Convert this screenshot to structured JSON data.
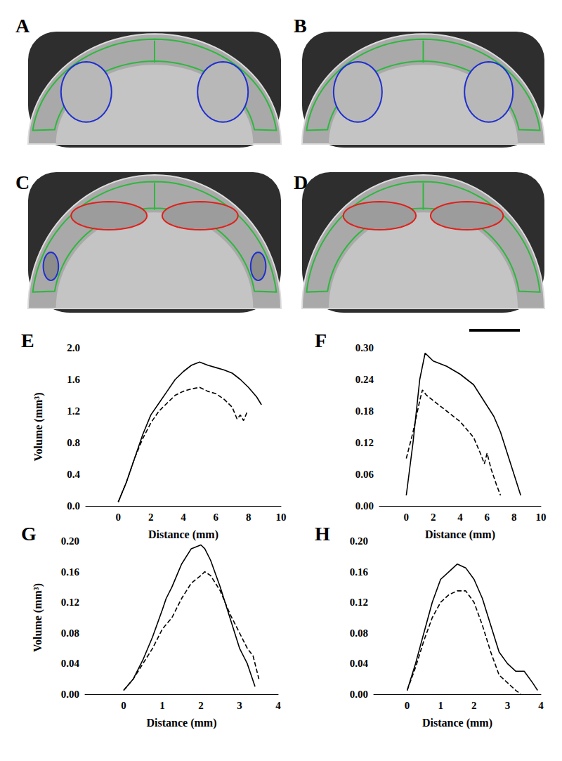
{
  "image_panels": [
    "A",
    "B",
    "C",
    "D"
  ],
  "chart_data": [
    {
      "type": "line",
      "panel": "E",
      "x_label": "Distance (mm)",
      "y_label": "Volume (mm³)",
      "xlim": [
        -2,
        10
      ],
      "xticks": [
        0,
        2,
        4,
        6,
        8,
        10
      ],
      "ylim": [
        0,
        2
      ],
      "yticks": [
        {
          "value": 0,
          "label": "0.0"
        },
        0.4,
        0.8,
        1.2,
        1.6,
        {
          "value": 2,
          "label": "2.0"
        }
      ],
      "grid": false,
      "series": [
        {
          "line_style": "solid",
          "color": "#000000",
          "x": [
            0,
            0.5,
            1,
            1.5,
            2,
            2.5,
            3,
            3.5,
            4,
            4.5,
            5,
            5.5,
            6,
            6.5,
            7,
            7.5,
            8,
            8.5,
            8.8
          ],
          "values": [
            0.05,
            0.3,
            0.6,
            0.9,
            1.15,
            1.3,
            1.45,
            1.6,
            1.7,
            1.78,
            1.82,
            1.78,
            1.75,
            1.72,
            1.68,
            1.6,
            1.5,
            1.38,
            1.28
          ]
        },
        {
          "line_style": "dashed",
          "color": "#000000",
          "x": [
            0,
            0.5,
            1,
            1.5,
            2,
            2.5,
            3,
            3.5,
            4,
            4.5,
            5,
            5.5,
            6,
            6.5,
            7,
            7.3,
            7.5,
            7.7,
            7.9
          ],
          "values": [
            0.05,
            0.3,
            0.6,
            0.85,
            1.05,
            1.2,
            1.3,
            1.4,
            1.45,
            1.48,
            1.5,
            1.45,
            1.42,
            1.35,
            1.25,
            1.1,
            1.15,
            1.08,
            1.18
          ]
        }
      ]
    },
    {
      "type": "line",
      "panel": "F",
      "x_label": "Distance (mm)",
      "xlim": [
        -2,
        10
      ],
      "xticks": [
        0,
        2,
        4,
        6,
        8,
        10
      ],
      "ylim": [
        0,
        0.3
      ],
      "yticks": [
        {
          "value": 0,
          "label": "0.00"
        },
        0.06,
        0.12,
        0.18,
        0.24,
        {
          "value": 0.3,
          "label": "0.30"
        }
      ],
      "grid": false,
      "series": [
        {
          "line_style": "solid",
          "color": "#000000",
          "x": [
            0,
            0.5,
            1,
            1.4,
            2,
            3,
            4,
            5,
            5.5,
            6,
            6.5,
            7,
            7.5,
            8,
            8.5
          ],
          "values": [
            0.02,
            0.12,
            0.24,
            0.29,
            0.275,
            0.265,
            0.25,
            0.23,
            0.21,
            0.19,
            0.17,
            0.14,
            0.1,
            0.06,
            0.02
          ]
        },
        {
          "line_style": "dashed",
          "color": "#000000",
          "x": [
            0,
            0.5,
            1,
            1.2,
            1.5,
            2,
            3,
            4,
            5,
            5.5,
            5.8,
            6,
            6.3,
            6.7,
            7
          ],
          "values": [
            0.09,
            0.14,
            0.2,
            0.22,
            0.21,
            0.2,
            0.18,
            0.16,
            0.13,
            0.1,
            0.08,
            0.1,
            0.07,
            0.04,
            0.02
          ]
        }
      ]
    },
    {
      "type": "line",
      "panel": "G",
      "x_label": "Distance (mm)",
      "y_label": "Volume (mm³)",
      "xlim": [
        -1,
        4
      ],
      "xticks": [
        0,
        1,
        2,
        3,
        4
      ],
      "ylim": [
        0,
        0.2
      ],
      "yticks": [
        {
          "value": 0,
          "label": "0.00"
        },
        0.04,
        0.08,
        0.12,
        0.16,
        {
          "value": 0.2,
          "label": "0.20"
        }
      ],
      "grid": false,
      "series": [
        {
          "line_style": "solid",
          "color": "#000000",
          "x": [
            0,
            0.25,
            0.5,
            0.75,
            1,
            1.1,
            1.25,
            1.5,
            1.75,
            2,
            2.1,
            2.25,
            2.5,
            2.75,
            3,
            3.1,
            3.2,
            3.3,
            3.4
          ],
          "values": [
            0.005,
            0.02,
            0.045,
            0.075,
            0.11,
            0.125,
            0.14,
            0.17,
            0.19,
            0.195,
            0.19,
            0.175,
            0.14,
            0.1,
            0.06,
            0.05,
            0.04,
            0.025,
            0.01
          ]
        },
        {
          "line_style": "dashed",
          "color": "#000000",
          "x": [
            0,
            0.25,
            0.5,
            0.75,
            1,
            1.25,
            1.5,
            1.75,
            2,
            2.1,
            2.25,
            2.5,
            2.75,
            3,
            3.2,
            3.35,
            3.45,
            3.5
          ],
          "values": [
            0.005,
            0.02,
            0.04,
            0.06,
            0.085,
            0.1,
            0.125,
            0.145,
            0.155,
            0.16,
            0.155,
            0.135,
            0.105,
            0.08,
            0.06,
            0.05,
            0.03,
            0.02
          ]
        }
      ]
    },
    {
      "type": "line",
      "panel": "H",
      "x_label": "Distance (mm)",
      "xlim": [
        -1,
        4
      ],
      "xticks": [
        0,
        1,
        2,
        3,
        4
      ],
      "ylim": [
        0,
        0.2
      ],
      "yticks": [
        {
          "value": 0,
          "label": "0.00"
        },
        0.04,
        0.08,
        0.12,
        0.16,
        {
          "value": 0.2,
          "label": "0.20"
        }
      ],
      "grid": false,
      "series": [
        {
          "line_style": "solid",
          "color": "#000000",
          "x": [
            0,
            0.25,
            0.5,
            0.75,
            1,
            1.25,
            1.5,
            1.75,
            2,
            2.25,
            2.5,
            2.75,
            3,
            3.25,
            3.5,
            3.75,
            3.9
          ],
          "values": [
            0.005,
            0.04,
            0.08,
            0.12,
            0.15,
            0.16,
            0.17,
            0.165,
            0.15,
            0.125,
            0.09,
            0.055,
            0.04,
            0.03,
            0.03,
            0.015,
            0.005
          ]
        },
        {
          "line_style": "dashed",
          "color": "#000000",
          "x": [
            0,
            0.25,
            0.5,
            0.75,
            1,
            1.25,
            1.5,
            1.75,
            2,
            2.25,
            2.5,
            2.75,
            3,
            3.25,
            3.4
          ],
          "values": [
            0.005,
            0.035,
            0.07,
            0.1,
            0.12,
            0.13,
            0.135,
            0.135,
            0.12,
            0.09,
            0.055,
            0.025,
            0.015,
            0.005,
            0
          ]
        }
      ]
    }
  ]
}
